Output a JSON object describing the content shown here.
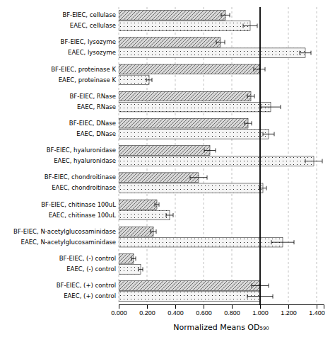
{
  "chart_data": {
    "type": "bar",
    "orientation": "horizontal",
    "xlabel": "Normalized Means OD₅₉₀",
    "categories": [
      "BF-EIEC, cellulase",
      "EAEC, cellulase",
      "BF-EIEC, lysozyme",
      "EAEC, lysozyme",
      "BF-EIEC, proteinase K",
      "EAEC, proteinase K",
      "BF-EIEC, RNase",
      "EAEC, RNase",
      "BF-EIEC, DNase",
      "EAEC, DNase",
      "BF-EIEC, hyaluronidase",
      "EAEC, hyaluronidase",
      "BF-EIEC, chondroitinase",
      "EAEC, chondroitinase",
      "BF-EIEC, chitinase 100uL",
      "EAEC, chitinase 100uL",
      "BF-EIEC, N-acetylglucosaminidase",
      "EAEC, N-acetylglucosaminidase",
      "BF-EIEC, (-) control",
      "EAEC, (-) control",
      "BF-EIEC, (+) control",
      "EAEC, (+) control"
    ],
    "values": [
      0.755,
      0.93,
      0.72,
      1.32,
      0.995,
      0.215,
      0.935,
      1.075,
      0.915,
      1.06,
      0.645,
      1.38,
      0.565,
      1.02,
      0.27,
      0.36,
      0.245,
      1.16,
      0.105,
      0.155,
      1.0,
      1.0
    ],
    "errors": [
      0.03,
      0.05,
      0.03,
      0.04,
      0.04,
      0.02,
      0.025,
      0.07,
      0.025,
      0.04,
      0.04,
      0.06,
      0.06,
      0.025,
      0.015,
      0.025,
      0.02,
      0.08,
      0.015,
      0.015,
      0.06,
      0.09
    ],
    "colors": [
      "#d8d8d8",
      "#f5f5f5",
      "#d8d8d8",
      "#f5f5f5",
      "#d8d8d8",
      "#f5f5f5",
      "#d8d8d8",
      "#f5f5f5",
      "#d8d8d8",
      "#f5f5f5",
      "#d8d8d8",
      "#f5f5f5",
      "#d8d8d8",
      "#f5f5f5",
      "#d8d8d8",
      "#f5f5f5",
      "#d8d8d8",
      "#f5f5f5",
      "#d8d8d8",
      "#f5f5f5",
      "#d8d8d8",
      "#f5f5f5"
    ],
    "xlim": [
      0.0,
      1.45
    ],
    "xticks": [
      {
        "value": 0.0,
        "label": "0.000"
      },
      {
        "value": 0.2,
        "label": "0.200"
      },
      {
        "value": 0.4,
        "label": "0.400"
      },
      {
        "value": 0.6,
        "label": "0.600"
      },
      {
        "value": 0.8,
        "label": "0.800"
      },
      {
        "value": 1.0,
        "label": "1.000"
      },
      {
        "value": 1.2,
        "label": "1.200"
      },
      {
        "value": 1.4,
        "label": "1.400"
      }
    ],
    "reference_line": 1.0,
    "grid": true
  }
}
